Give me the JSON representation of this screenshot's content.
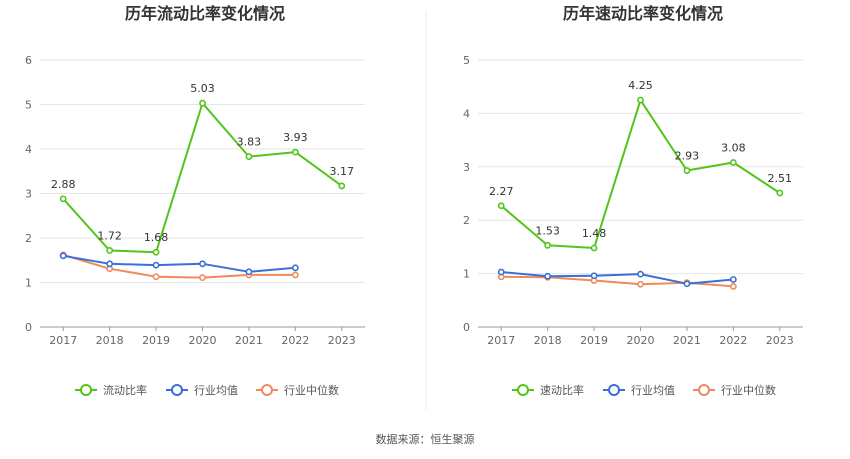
{
  "chart_data": [
    {
      "type": "line",
      "title": "历年流动比率变化情况",
      "categories": [
        "2017",
        "2018",
        "2019",
        "2020",
        "2021",
        "2022",
        "2023"
      ],
      "ylim": [
        0,
        6
      ],
      "yticks": [
        0,
        1,
        2,
        3,
        4,
        5,
        6
      ],
      "grid": true,
      "legend_position": "bottom",
      "series": [
        {
          "name": "流动比率",
          "color": "#52c41a",
          "values": [
            2.88,
            1.72,
            1.68,
            5.03,
            3.83,
            3.93,
            3.17
          ],
          "labels": true
        },
        {
          "name": "行业均值",
          "color": "#3a6fd8",
          "values": [
            1.6,
            1.42,
            1.39,
            1.42,
            1.24,
            1.33,
            null
          ],
          "labels": false
        },
        {
          "name": "行业中位数",
          "color": "#f08a5d",
          "values": [
            1.62,
            1.31,
            1.13,
            1.11,
            1.17,
            1.17,
            null
          ],
          "labels": false
        }
      ]
    },
    {
      "type": "line",
      "title": "历年速动比率变化情况",
      "categories": [
        "2017",
        "2018",
        "2019",
        "2020",
        "2021",
        "2022",
        "2023"
      ],
      "ylim": [
        0,
        5
      ],
      "yticks": [
        0,
        1,
        2,
        3,
        4,
        5
      ],
      "grid": true,
      "legend_position": "bottom",
      "series": [
        {
          "name": "速动比率",
          "color": "#52c41a",
          "values": [
            2.27,
            1.53,
            1.48,
            4.25,
            2.93,
            3.08,
            2.51
          ],
          "labels": true
        },
        {
          "name": "行业均值",
          "color": "#3a6fd8",
          "values": [
            1.03,
            0.95,
            0.96,
            0.99,
            0.81,
            0.89,
            null
          ],
          "labels": false
        },
        {
          "name": "行业中位数",
          "color": "#f08a5d",
          "values": [
            0.94,
            0.93,
            0.87,
            0.8,
            0.83,
            0.76,
            null
          ],
          "labels": false
        }
      ]
    }
  ],
  "footer": {
    "source": "数据来源：恒生聚源"
  }
}
